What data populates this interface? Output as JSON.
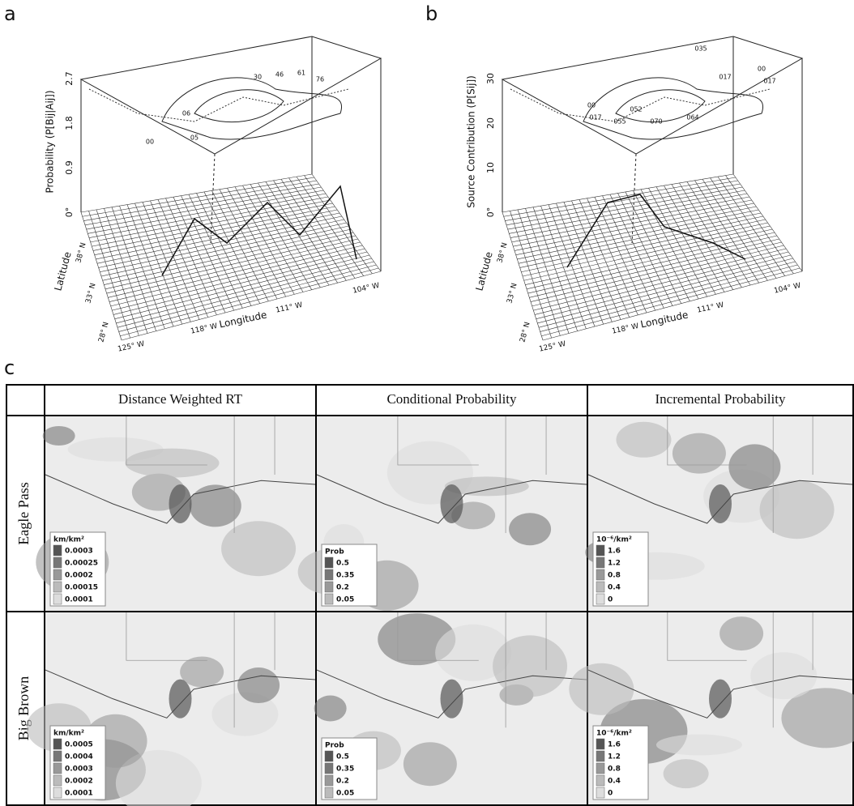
{
  "panels": [
    {
      "label": "a",
      "z_axis_label": "Probability (P[Bij|Aij])",
      "z_ticks": [
        "0°",
        "0.9",
        "1.8",
        "2.7"
      ],
      "lat_label": "Latitude",
      "lon_label": "Longitude",
      "lat_ticks": [
        "28° N",
        "33° N",
        "38° N"
      ],
      "lon_ticks": [
        "125° W",
        "118° W",
        "111° W",
        "104° W"
      ],
      "contour_labels": [
        "00",
        "05",
        "06",
        "30",
        "46",
        "61",
        "76"
      ]
    },
    {
      "label": "b",
      "z_axis_label": "Source Contribution (P[Sij])",
      "z_ticks": [
        "0°",
        "10",
        "20",
        "30"
      ],
      "lat_label": "Latitude",
      "lon_label": "Longitude",
      "lat_ticks": [
        "28° N",
        "33° N",
        "38° N"
      ],
      "lon_ticks": [
        "125° W",
        "118° W",
        "111° W",
        "104° W"
      ],
      "contour_labels": [
        "035",
        "00",
        "017",
        "017",
        "00",
        "017",
        "055",
        "052",
        "070",
        "064"
      ]
    }
  ],
  "table": {
    "label": "c",
    "columns": [
      "Distance Weighted RT",
      "Conditional Probability",
      "Incremental Probability"
    ],
    "rows": [
      {
        "name": "Eagle Pass",
        "legends": [
          {
            "title": "km/km²",
            "items": [
              "0.0003",
              "0.00025",
              "0.0002",
              "0.00015",
              "0.0001"
            ]
          },
          {
            "title": "Prob",
            "items": [
              "0.5",
              "0.35",
              "0.2",
              "0.05"
            ]
          },
          {
            "title": "10⁻⁶/km²",
            "items": [
              "1.6",
              "1.2",
              "0.8",
              "0.4",
              "0"
            ]
          }
        ]
      },
      {
        "name": "Big Brown",
        "legends": [
          {
            "title": "km/km²",
            "items": [
              "0.0005",
              "0.0004",
              "0.0003",
              "0.0002",
              "0.0001"
            ]
          },
          {
            "title": "Prob",
            "items": [
              "0.5",
              "0.35",
              "0.2",
              "0.05"
            ]
          },
          {
            "title": "10⁻⁶/km²",
            "items": [
              "1.6",
              "1.2",
              "0.8",
              "0.4",
              "0"
            ]
          }
        ]
      }
    ]
  }
}
